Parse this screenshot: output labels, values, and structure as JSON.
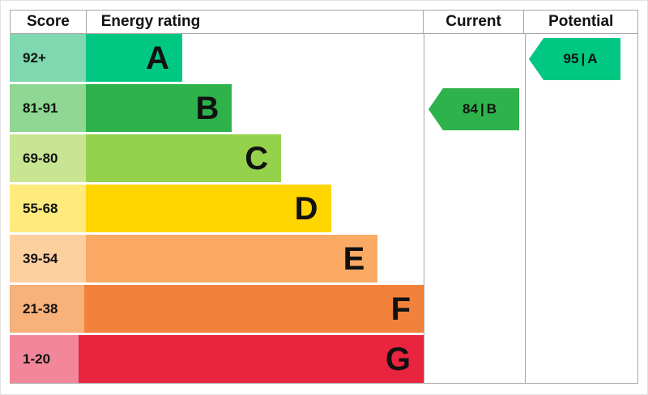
{
  "headers": {
    "score": "Score",
    "energy_rating": "Energy rating",
    "current": "Current",
    "potential": "Potential"
  },
  "bands": [
    {
      "score_label": "92+",
      "letter": "A",
      "bar_color": "#00c781",
      "tint_color": "#7fd8b0",
      "width_pct": 23.3
    },
    {
      "score_label": "81-91",
      "letter": "B",
      "bar_color": "#2eb24c",
      "tint_color": "#8fd793",
      "width_pct": 35.3
    },
    {
      "score_label": "69-80",
      "letter": "C",
      "bar_color": "#94d24b",
      "tint_color": "#c8e593",
      "width_pct": 47.2
    },
    {
      "score_label": "55-68",
      "letter": "D",
      "bar_color": "#ffd500",
      "tint_color": "#ffea7d",
      "width_pct": 59.2
    },
    {
      "score_label": "39-54",
      "letter": "E",
      "bar_color": "#fbaa65",
      "tint_color": "#fccf9f",
      "width_pct": 70.5
    },
    {
      "score_label": "21-38",
      "letter": "F",
      "bar_color": "#f2813b",
      "tint_color": "#f7b179",
      "width_pct": 83.7
    },
    {
      "score_label": "1-20",
      "letter": "G",
      "bar_color": "#e9243f",
      "tint_color": "#f2879a",
      "width_pct": 94.0
    }
  ],
  "current": {
    "score": "84",
    "letter": "B",
    "divider": "|",
    "color": "#2eb24c",
    "band_index": 1
  },
  "potential": {
    "score": "95",
    "letter": "A",
    "divider": "|",
    "color": "#00c781",
    "band_index": 0
  },
  "chart_data": {
    "type": "bar",
    "title": "Energy rating",
    "categories": [
      "A",
      "B",
      "C",
      "D",
      "E",
      "F",
      "G"
    ],
    "score_ranges": [
      "92+",
      "81-91",
      "69-80",
      "55-68",
      "39-54",
      "21-38",
      "1-20"
    ],
    "bar_relative_widths_pct": [
      23.3,
      35.3,
      47.2,
      59.2,
      70.5,
      83.7,
      94.0
    ],
    "bar_colors": [
      "#00c781",
      "#2eb24c",
      "#94d24b",
      "#ffd500",
      "#fbaa65",
      "#f2813b",
      "#e9243f"
    ],
    "columns": [
      "Score",
      "Energy rating",
      "Current",
      "Potential"
    ],
    "current": {
      "score": 84,
      "rating": "B"
    },
    "potential": {
      "score": 95,
      "rating": "A"
    },
    "legend_position": "none",
    "grid": false
  }
}
